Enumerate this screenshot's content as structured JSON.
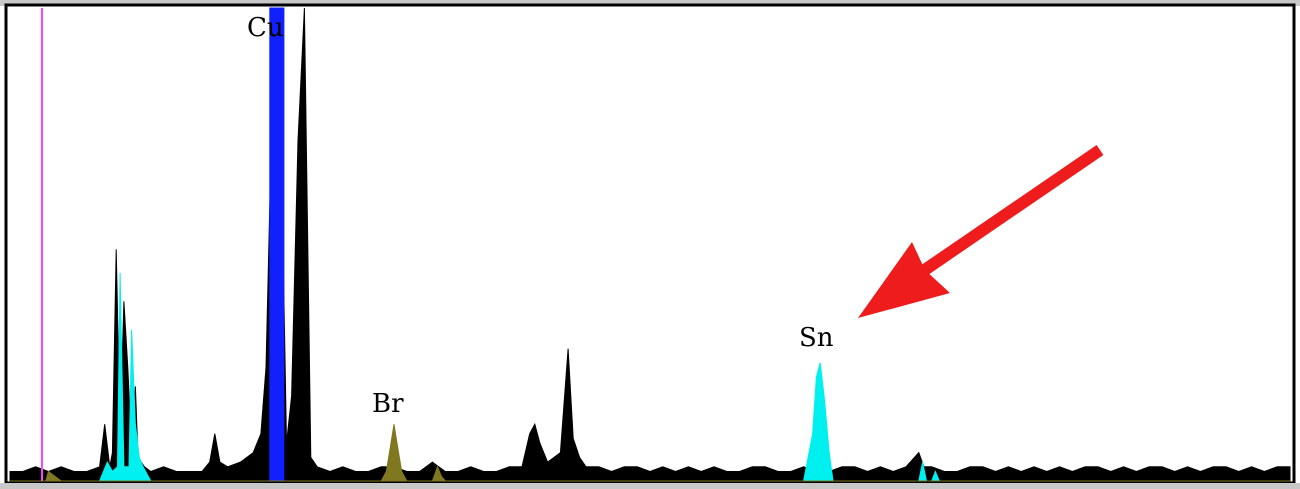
{
  "chart_data": {
    "type": "area",
    "title": "",
    "xlabel": "",
    "ylabel": "",
    "ylim": [
      0,
      100
    ],
    "grid": false,
    "legend": "none",
    "annotations": [
      {
        "text": "Cu",
        "x": 21
      },
      {
        "text": "Br",
        "x": 30
      },
      {
        "text": "Sn",
        "x": 63
      },
      {
        "text": "",
        "type": "arrow",
        "points_to": "Sn",
        "color": "#ee1c1c"
      }
    ],
    "marker_line": {
      "x": 2.5,
      "color": "#ff44ff"
    },
    "series": [
      {
        "color": "#000000",
        "values": [
          [
            0,
            2
          ],
          [
            1,
            2
          ],
          [
            2,
            3
          ],
          [
            3,
            2
          ],
          [
            4,
            3
          ],
          [
            5,
            2
          ],
          [
            6,
            2
          ],
          [
            7,
            3
          ],
          [
            7.4,
            12
          ],
          [
            7.8,
            3
          ],
          [
            8,
            6
          ],
          [
            8.3,
            49
          ],
          [
            8.6,
            10
          ],
          [
            8.9,
            38
          ],
          [
            9.2,
            24
          ],
          [
            9.5,
            7
          ],
          [
            9.8,
            20
          ],
          [
            10,
            5
          ],
          [
            10.5,
            3
          ],
          [
            11,
            2
          ],
          [
            12,
            3
          ],
          [
            13,
            2
          ],
          [
            15,
            2
          ],
          [
            15.6,
            4
          ],
          [
            16,
            10
          ],
          [
            16.4,
            4
          ],
          [
            17,
            3
          ],
          [
            18,
            4
          ],
          [
            19,
            6
          ],
          [
            19.6,
            10
          ],
          [
            20,
            24
          ],
          [
            20.4,
            70
          ],
          [
            21,
            100
          ],
          [
            21.6,
            8
          ],
          [
            22,
            18
          ],
          [
            22.5,
            72
          ],
          [
            23,
            100
          ],
          [
            23.5,
            5
          ],
          [
            24,
            3
          ],
          [
            25,
            2
          ],
          [
            26,
            3
          ],
          [
            27,
            2
          ],
          [
            28,
            2
          ],
          [
            29,
            3
          ],
          [
            30,
            3
          ],
          [
            31,
            2
          ],
          [
            32,
            2
          ],
          [
            33,
            4
          ],
          [
            34,
            2
          ],
          [
            35,
            2
          ],
          [
            36,
            3
          ],
          [
            37,
            2
          ],
          [
            38,
            2
          ],
          [
            39,
            3
          ],
          [
            40,
            3
          ],
          [
            40.6,
            10
          ],
          [
            41,
            12
          ],
          [
            41.4,
            8
          ],
          [
            42,
            4
          ],
          [
            43,
            6
          ],
          [
            43.6,
            28
          ],
          [
            44,
            9
          ],
          [
            44.5,
            5
          ],
          [
            45,
            3
          ],
          [
            46,
            3
          ],
          [
            47,
            2
          ],
          [
            48,
            3
          ],
          [
            49,
            3
          ],
          [
            50,
            2
          ],
          [
            51,
            3
          ],
          [
            52,
            2
          ],
          [
            53,
            3
          ],
          [
            54,
            2
          ],
          [
            55,
            3
          ],
          [
            56,
            2
          ],
          [
            57,
            2
          ],
          [
            58,
            3
          ],
          [
            59,
            3
          ],
          [
            60,
            2
          ],
          [
            61,
            2
          ],
          [
            62,
            3
          ],
          [
            63,
            2
          ],
          [
            64,
            2
          ],
          [
            65,
            3
          ],
          [
            66,
            3
          ],
          [
            67,
            2
          ],
          [
            68,
            3
          ],
          [
            69,
            2
          ],
          [
            70,
            3
          ],
          [
            71,
            6
          ],
          [
            71.4,
            3
          ],
          [
            72,
            3
          ],
          [
            73,
            2
          ],
          [
            74,
            2
          ],
          [
            75,
            3
          ],
          [
            76,
            3
          ],
          [
            77,
            2
          ],
          [
            78,
            3
          ],
          [
            79,
            2
          ],
          [
            80,
            3
          ],
          [
            81,
            2
          ],
          [
            82,
            3
          ],
          [
            83,
            2
          ],
          [
            84,
            3
          ],
          [
            85,
            3
          ],
          [
            86,
            2
          ],
          [
            87,
            3
          ],
          [
            88,
            2
          ],
          [
            89,
            3
          ],
          [
            90,
            3
          ],
          [
            91,
            2
          ],
          [
            92,
            3
          ],
          [
            93,
            2
          ],
          [
            94,
            3
          ],
          [
            95,
            3
          ],
          [
            96,
            2
          ],
          [
            97,
            3
          ],
          [
            98,
            2
          ],
          [
            99,
            3
          ],
          [
            100,
            3
          ]
        ]
      },
      {
        "color": "#1020ff",
        "values": [
          [
            20.3,
            0
          ],
          [
            20.3,
            100
          ],
          [
            21.4,
            100
          ],
          [
            21.4,
            0
          ]
        ]
      },
      {
        "color": "#00f0f0",
        "values": [
          [
            0,
            0
          ],
          [
            7,
            0
          ],
          [
            7.6,
            4
          ],
          [
            8,
            2
          ],
          [
            8.4,
            3
          ],
          [
            8.6,
            44
          ],
          [
            8.9,
            3
          ],
          [
            9.3,
            3
          ],
          [
            9.5,
            32
          ],
          [
            9.8,
            12
          ],
          [
            10.1,
            5
          ],
          [
            10.4,
            3
          ],
          [
            11,
            0
          ],
          [
            62,
            0
          ],
          [
            62.7,
            10
          ],
          [
            63,
            22
          ],
          [
            63.3,
            25
          ],
          [
            63.6,
            18
          ],
          [
            64,
            6
          ],
          [
            64.3,
            0
          ],
          [
            71,
            0
          ],
          [
            71.3,
            4
          ],
          [
            71.6,
            0
          ],
          [
            72,
            0
          ],
          [
            72.3,
            2
          ],
          [
            72.6,
            0
          ],
          [
            100,
            0
          ]
        ]
      },
      {
        "color": "#807820",
        "values": [
          [
            0,
            0
          ],
          [
            2.8,
            0
          ],
          [
            3,
            2
          ],
          [
            3.5,
            1
          ],
          [
            4,
            0
          ],
          [
            29,
            0
          ],
          [
            29.4,
            2
          ],
          [
            29.7,
            7
          ],
          [
            30,
            12
          ],
          [
            30.3,
            7
          ],
          [
            30.6,
            2
          ],
          [
            31,
            0
          ],
          [
            33,
            0
          ],
          [
            33.4,
            3
          ],
          [
            33.7,
            1
          ],
          [
            34,
            0
          ],
          [
            100,
            0
          ]
        ]
      }
    ]
  }
}
